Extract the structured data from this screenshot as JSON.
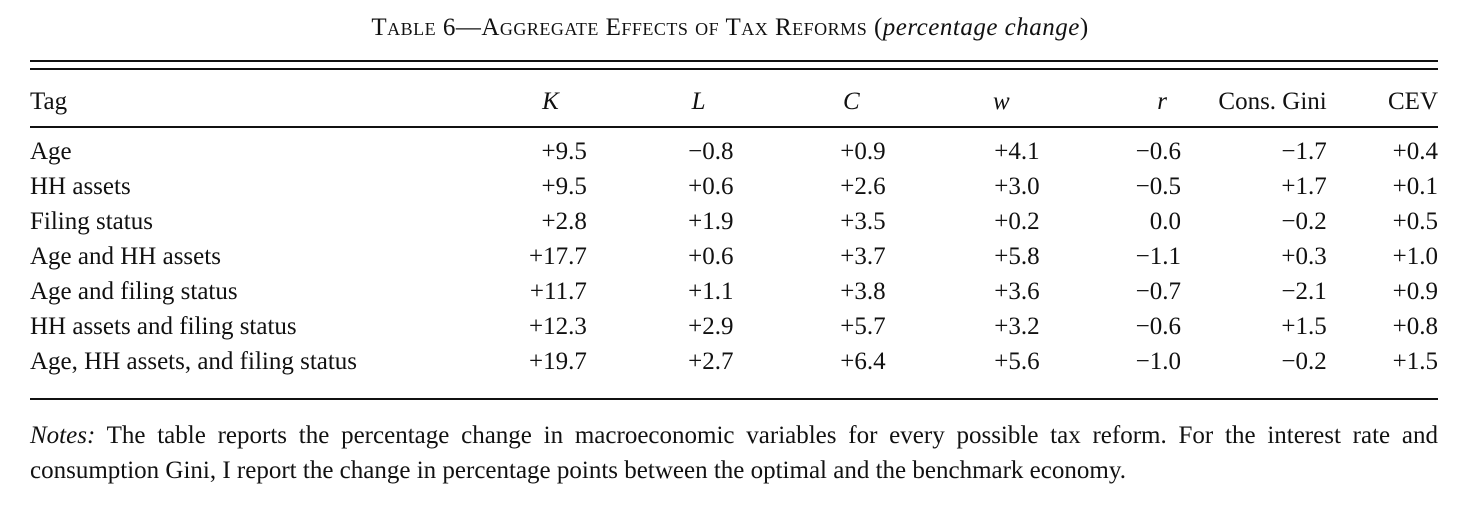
{
  "caption": {
    "prefix": "Table 6—Aggregate Effects of Tax Reforms",
    "suffix_italic": "percentage change"
  },
  "table": {
    "headers": [
      "Tag",
      "K",
      "L",
      "C",
      "w",
      "r",
      "Cons. Gini",
      "CEV"
    ],
    "rows": [
      [
        "Age",
        "+9.5",
        "−0.8",
        "+0.9",
        "+4.1",
        "−0.6",
        "−1.7",
        "+0.4"
      ],
      [
        "HH assets",
        "+9.5",
        "+0.6",
        "+2.6",
        "+3.0",
        "−0.5",
        "+1.7",
        "+0.1"
      ],
      [
        "Filing status",
        "+2.8",
        "+1.9",
        "+3.5",
        "+0.2",
        "0.0",
        "−0.2",
        "+0.5"
      ],
      [
        "Age and HH assets",
        "+17.7",
        "+0.6",
        "+3.7",
        "+5.8",
        "−1.1",
        "+0.3",
        "+1.0"
      ],
      [
        "Age and filing status",
        "+11.7",
        "+1.1",
        "+3.8",
        "+3.6",
        "−0.7",
        "−2.1",
        "+0.9"
      ],
      [
        "HH assets and filing status",
        "+12.3",
        "+2.9",
        "+5.7",
        "+3.2",
        "−0.6",
        "+1.5",
        "+0.8"
      ],
      [
        "Age, HH assets, and filing status",
        "+19.7",
        "+2.7",
        "+6.4",
        "+5.6",
        "−1.0",
        "−0.2",
        "+1.5"
      ]
    ]
  },
  "notes": {
    "label": "Notes:",
    "text": "The table reports the percentage change in macroeconomic variables for every possible tax reform. For the interest rate and consumption Gini, I report the change in percentage points between the optimal and the benchmark economy."
  }
}
